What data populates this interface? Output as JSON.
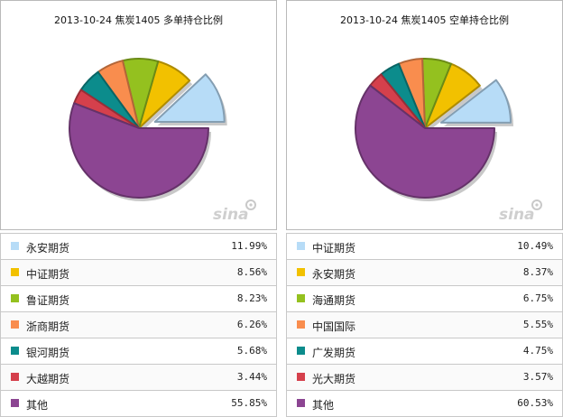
{
  "chart_data": [
    {
      "type": "pie",
      "title": "2013-10-24 焦炭1405 多单持仓比例",
      "categories": [
        "永安期货",
        "中证期货",
        "鲁证期货",
        "浙商期货",
        "银河期货",
        "大越期货",
        "其他"
      ],
      "values": [
        11.99,
        8.56,
        8.23,
        6.26,
        5.68,
        3.44,
        55.85
      ],
      "value_labels": [
        "11.99%",
        "8.56%",
        "8.23%",
        "6.26%",
        "5.68%",
        "3.44%",
        "55.85%"
      ],
      "colors": [
        "#b7dcf7",
        "#f2c100",
        "#94c11f",
        "#f98d4e",
        "#0c8c8c",
        "#d5404c",
        "#8c4592"
      ],
      "exploded_index": 0
    },
    {
      "type": "pie",
      "title": "2013-10-24 焦炭1405 空单持仓比例",
      "categories": [
        "中证期货",
        "永安期货",
        "海通期货",
        "中国国际",
        "广发期货",
        "光大期货",
        "其他"
      ],
      "values": [
        10.49,
        8.37,
        6.75,
        5.55,
        4.75,
        3.57,
        60.53
      ],
      "value_labels": [
        "10.49%",
        "8.37%",
        "6.75%",
        "5.55%",
        "4.75%",
        "3.57%",
        "60.53%"
      ],
      "colors": [
        "#b7dcf7",
        "#f2c100",
        "#94c11f",
        "#f98d4e",
        "#0c8c8c",
        "#d5404c",
        "#8c4592"
      ],
      "exploded_index": 0
    }
  ],
  "watermark": "sina"
}
